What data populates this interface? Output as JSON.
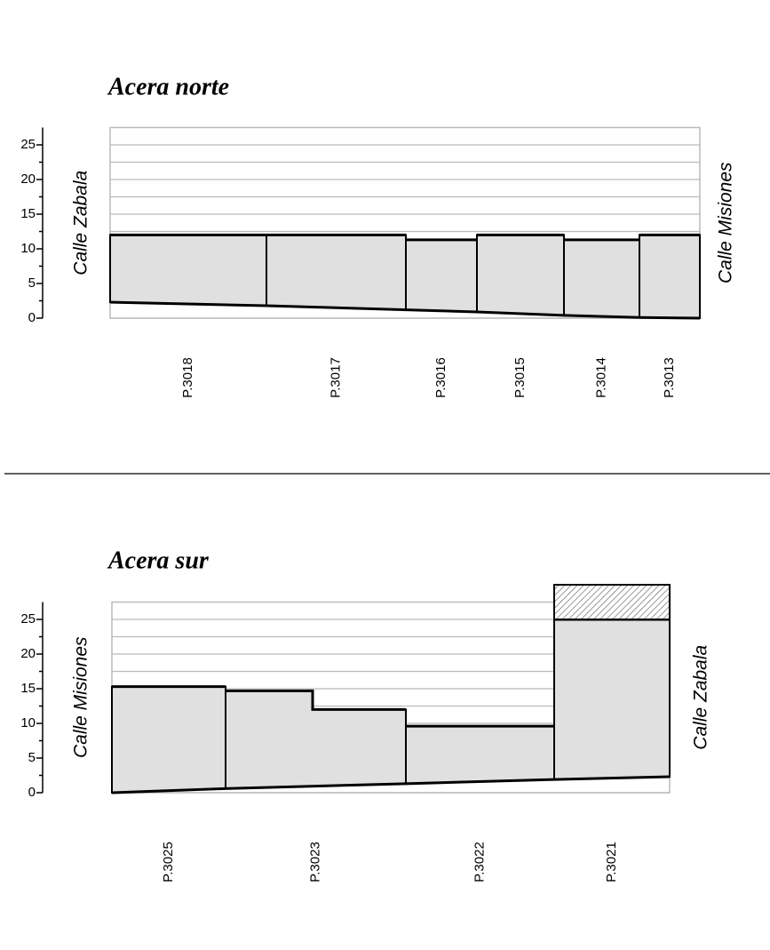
{
  "chart_data": [
    {
      "type": "profile",
      "title": "Acera norte",
      "left_label": "Calle  Zabala",
      "right_label": "Calle  Misiones",
      "ylim": [
        0,
        27.5
      ],
      "yticks": [
        0,
        5,
        10,
        15,
        20,
        25
      ],
      "minor_yticks": [
        2.5,
        7.5,
        12.5,
        17.5,
        22.5
      ],
      "xlim": [
        0,
        664
      ],
      "grid": true,
      "color": "#e0e0e0",
      "buildings": [
        {
          "label": "P.3018",
          "x": [
            0,
            176
          ],
          "top": [
            12
          ],
          "base": [
            2.3,
            1.8
          ]
        },
        {
          "label": "P.3017",
          "x": [
            176,
            333
          ],
          "top": [
            12
          ],
          "base": [
            1.8,
            1.2
          ]
        },
        {
          "label": "P.3016",
          "x": [
            333,
            413
          ],
          "top": [
            11.3
          ],
          "base": [
            1.2,
            0.9
          ]
        },
        {
          "label": "P.3015",
          "x": [
            413,
            511
          ],
          "top": [
            12
          ],
          "base": [
            0.9,
            0.4
          ]
        },
        {
          "label": "P.3014",
          "x": [
            511,
            596
          ],
          "top": [
            11.3
          ],
          "base": [
            0.4,
            0.1
          ]
        },
        {
          "label": "P.3013",
          "x": [
            596,
            664
          ],
          "top": [
            12
          ],
          "base": [
            0.1,
            0
          ]
        }
      ]
    },
    {
      "type": "profile",
      "title": "Acera sur",
      "left_label": "Calle  Misiones",
      "right_label": "Calle  Zabala",
      "ylim": [
        0,
        27.5
      ],
      "yticks": [
        0,
        5,
        10,
        15,
        20,
        25
      ],
      "minor_yticks": [
        2.5,
        7.5,
        12.5,
        17.5,
        22.5
      ],
      "xlim": [
        0,
        628
      ],
      "grid": true,
      "color": "#e0e0e0",
      "buildings": [
        {
          "label": "P.3025",
          "x": [
            0,
            128
          ],
          "top": [
            15.3
          ],
          "base": [
            0,
            0.6
          ]
        },
        {
          "label": "P.3023",
          "x": [
            128,
            226,
            331
          ],
          "top": [
            14.7,
            12
          ],
          "base": [
            0.6,
            1.3
          ]
        },
        {
          "label": "P.3022",
          "x": [
            331,
            498
          ],
          "top": [
            9.6
          ],
          "base": [
            1.3,
            1.9
          ]
        },
        {
          "label": "P.3021",
          "x": [
            498,
            628
          ],
          "top": [
            25
          ],
          "base": [
            1.9,
            2.3
          ],
          "hatch": [
            25,
            30
          ]
        }
      ]
    }
  ]
}
